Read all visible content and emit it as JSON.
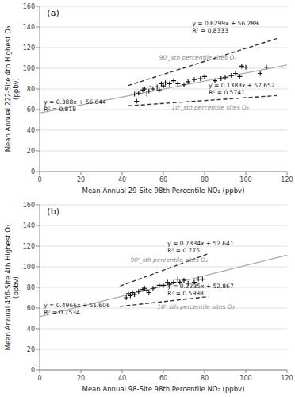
{
  "chart_data": [
    {
      "type": "scatter",
      "title": "(a)",
      "x_label": "Mean Annual 29-Site 98th Percentile NO₂ (ppbv)",
      "y_label": "Mean Annual 222-Site 4th Highest O₃\n(ppbv)",
      "xlim": [
        0,
        120
      ],
      "ylim": [
        0,
        160
      ],
      "xticks": [
        0,
        20,
        40,
        60,
        80,
        100,
        120
      ],
      "yticks": [
        0,
        20,
        40,
        60,
        80,
        100,
        120,
        140,
        160
      ],
      "grid": true,
      "series": [
        {
          "type": "scatter",
          "color": "#111111",
          "marker": "plus",
          "x": [
            46,
            47,
            48,
            50,
            51,
            52,
            53,
            54,
            55,
            57,
            58,
            59,
            60,
            61,
            63,
            65,
            67,
            70,
            72,
            75,
            78,
            80,
            85,
            88,
            90,
            93,
            95,
            97,
            98,
            100,
            107,
            110
          ],
          "values": [
            75,
            68,
            76,
            79,
            80,
            75,
            78,
            82,
            80,
            82,
            79,
            85,
            83,
            86,
            85,
            88,
            85,
            84,
            87,
            89,
            90,
            92,
            88,
            90,
            91,
            93,
            95,
            92,
            102,
            101,
            95,
            101
          ]
        },
        {
          "type": "line",
          "color": "#aaaaaa",
          "line_style": "solid",
          "x": [
            0,
            120
          ],
          "values": [
            56.644,
            103.204
          ]
        },
        {
          "type": "line",
          "color": "#333333",
          "line_style": "dashed",
          "x": [
            43,
            115
          ],
          "values": [
            83.3747,
            128.7275
          ]
        },
        {
          "type": "line",
          "color": "#333333",
          "line_style": "dashed",
          "x": [
            43,
            115
          ],
          "values": [
            63.5989,
            73.5565
          ]
        }
      ],
      "annotations": [
        {
          "text": "90ᵗ˾sth percentile sites O₃",
          "x": 58,
          "y": 107
        },
        {
          "text": "10ᵗ˾sth percentile sites O₃",
          "x": 64,
          "y": 65
        },
        {
          "text": "y = 0.388x + 56.644\nR² = 0.818",
          "x": 2,
          "y": 57
        },
        {
          "text": "y = 0.6299x + 56.289\nR² = 0.8333",
          "x": 74,
          "y": 133
        },
        {
          "text": "y = 0.1383x + 57.652\nR² = 0.5741",
          "x": 82,
          "y": 73
        }
      ]
    },
    {
      "type": "scatter",
      "title": "(b)",
      "x_label": "Mean Annual 98-Site 98th Percentile NO₂ (ppbv)",
      "y_label": "Mean Annual 466-Site 4th Highest O₃\n(ppbv)",
      "xlim": [
        0,
        120
      ],
      "ylim": [
        0,
        160
      ],
      "xticks": [
        0,
        20,
        40,
        60,
        80,
        100,
        120
      ],
      "yticks": [
        0,
        20,
        40,
        60,
        80,
        100,
        120,
        140,
        160
      ],
      "grid": true,
      "series": [
        {
          "type": "scatter",
          "color": "#111111",
          "marker": "plus",
          "x": [
            42,
            43,
            44,
            45,
            46,
            48,
            50,
            51,
            52,
            53,
            55,
            56,
            58,
            60,
            62,
            63,
            65,
            67,
            68,
            70,
            72,
            75,
            77,
            79
          ],
          "values": [
            70,
            74,
            72,
            75,
            73,
            76,
            78,
            79,
            77,
            75,
            79,
            80,
            82,
            82,
            85,
            83,
            85,
            88,
            85,
            87,
            84,
            85,
            88,
            88
          ]
        },
        {
          "type": "line",
          "color": "#aaaaaa",
          "line_style": "solid",
          "x": [
            0,
            120
          ],
          "values": [
            51.606,
            111.198
          ]
        },
        {
          "type": "line",
          "color": "#333333",
          "line_style": "dashed",
          "x": [
            39,
            82
          ],
          "values": [
            81.2436,
            112.7798
          ]
        },
        {
          "type": "line",
          "color": "#333333",
          "line_style": "dashed",
          "x": [
            39,
            82
          ],
          "values": [
            61.5835,
            71.194
          ]
        }
      ],
      "annotations": [
        {
          "text": "90ᵗ˾sth percentile sites O₃",
          "x": 44,
          "y": 103
        },
        {
          "text": "10ᵗ˾sth percentile sites O₃",
          "x": 57,
          "y": 64
        },
        {
          "text": "y = 0.4966x + 51.606\nR² = 0.7534",
          "x": 2,
          "y": 52
        },
        {
          "text": "y = 0.7334x + 52.641\nR² = 0.775",
          "x": 62,
          "y": 112
        },
        {
          "text": "y = 0.2235x + 52.867\nR² = 0.5998",
          "x": 62,
          "y": 71
        }
      ]
    }
  ]
}
